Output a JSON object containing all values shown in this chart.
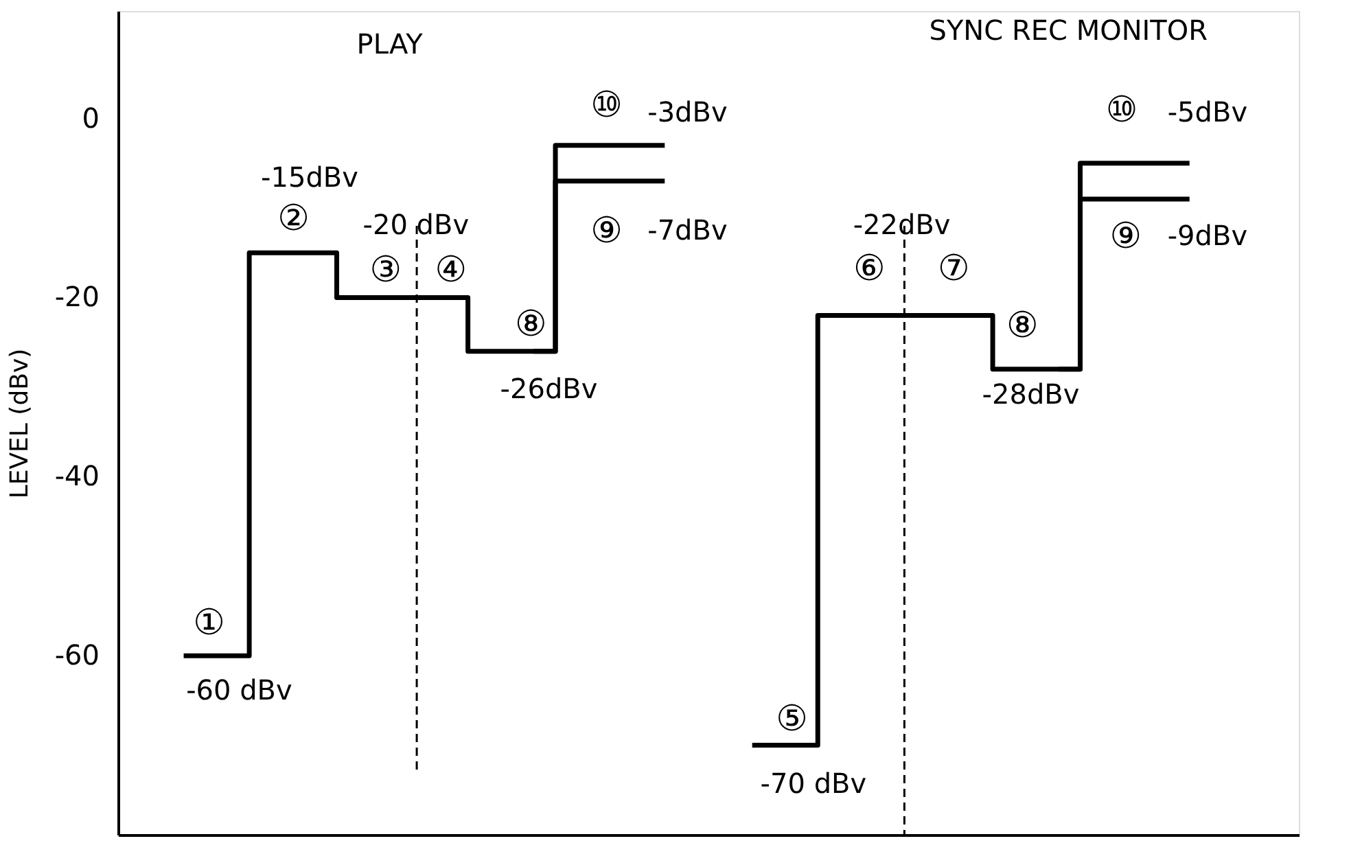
{
  "chart_data": {
    "type": "step",
    "ylabel": "LEVEL (dBv)",
    "ylim": [
      -80,
      12
    ],
    "yticks": [
      0,
      -20,
      -40,
      -60
    ],
    "tick_labels": "y",
    "grid": false,
    "marker": "none",
    "line_style": "solid",
    "categories": [
      null,
      null,
      null,
      null,
      null,
      null,
      null,
      null,
      null,
      null,
      null,
      null,
      null,
      null,
      null,
      null,
      null,
      null,
      null,
      null,
      null,
      null,
      null,
      null,
      null,
      null,
      null
    ],
    "series": [
      {
        "color": "#000000",
        "values": [
          null,
          -60,
          -60,
          -15,
          -15,
          -20,
          -20,
          -20,
          -26,
          -26,
          -3,
          -3,
          -3,
          null,
          null,
          null,
          null,
          null,
          null,
          null,
          null,
          null,
          null,
          null,
          null,
          null,
          null
        ]
      },
      {
        "color": "#000000",
        "values": [
          null,
          null,
          null,
          null,
          null,
          null,
          null,
          null,
          null,
          -26,
          -7,
          -7,
          -7,
          null,
          null,
          null,
          null,
          null,
          null,
          null,
          null,
          null,
          null,
          null,
          null,
          null,
          null
        ]
      },
      {
        "color": "#000000",
        "values": [
          null,
          null,
          null,
          null,
          null,
          null,
          null,
          null,
          null,
          null,
          null,
          null,
          null,
          null,
          -70,
          -70,
          -22,
          -22,
          -22,
          -22,
          -28,
          -28,
          -5,
          -5,
          -5,
          null,
          null
        ]
      },
      {
        "color": "#000000",
        "values": [
          null,
          null,
          null,
          null,
          null,
          null,
          null,
          null,
          null,
          null,
          null,
          null,
          null,
          null,
          null,
          null,
          null,
          null,
          null,
          null,
          null,
          -28,
          -9,
          -9,
          -9,
          null,
          null
        ]
      }
    ],
    "annotations": [
      "PLAY",
      "①",
      "-60 dBv",
      "②",
      "-15dBv",
      "③",
      "④",
      "-20 dBv",
      "⑧",
      "-26dBv",
      "⑩",
      "-3dBv",
      "⑨",
      "-7dBv",
      "SYNC  REC  MONITOR",
      "⑤",
      "-70 dBv",
      "⑥",
      "⑦",
      "-22dBv",
      "⑧",
      "-28dBv",
      "⑩",
      "-5dBv",
      "⑨",
      "-9dBv"
    ]
  }
}
